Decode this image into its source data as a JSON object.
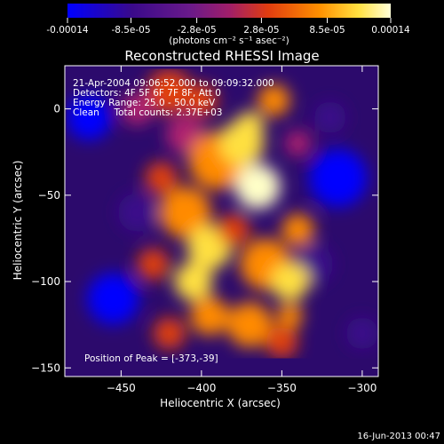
{
  "colorbar": {
    "ticks": [
      "-0.00014",
      "-8.5e-05",
      "-2.8e-05",
      "2.8e-05",
      "8.5e-05",
      "0.00014"
    ],
    "tick_values": [
      -0.00014,
      -8.5e-05,
      -2.8e-05,
      2.8e-05,
      8.5e-05,
      0.00014
    ],
    "unit_label": "(photons cm⁻² s⁻¹ asec⁻²)",
    "range": [
      -0.00014,
      0.00014
    ]
  },
  "chart_data": {
    "type": "heatmap",
    "title": "Reconstructed RHESSI Image",
    "xlabel": "Heliocentric X (arcsec)",
    "ylabel": "Heliocentric Y (arcsec)",
    "xlim": [
      -485,
      -290
    ],
    "ylim": [
      -155,
      25
    ],
    "x_ticks": [
      -450,
      -400,
      -350,
      -300
    ],
    "x_tick_labels": [
      "−450",
      "−400",
      "−350",
      "−300"
    ],
    "y_ticks": [
      -150,
      -100,
      -50,
      0
    ],
    "y_tick_labels": [
      "−150",
      "−100",
      "−50",
      "0"
    ],
    "peak_position": [
      -373,
      -39
    ],
    "colormap": [
      "#0000ff",
      "#3a0a8a",
      "#7a1a9a",
      "#b02070",
      "#e04010",
      "#ff8a00",
      "#ffe040",
      "#ffffc8"
    ],
    "annotations": [
      "21-Apr-2004 09:06:52.000 to 09:09:32.000",
      "Detectors: 4F 5F 6F 7F 8F, Att 0",
      "Energy Range: 25.0 - 50.0 keV",
      "Clean     Total counts: 2.37E+03"
    ],
    "peak_label": "Position of Peak = [-373,-39]"
  },
  "footer": {
    "timestamp": "16-Jun-2013 00:47"
  }
}
